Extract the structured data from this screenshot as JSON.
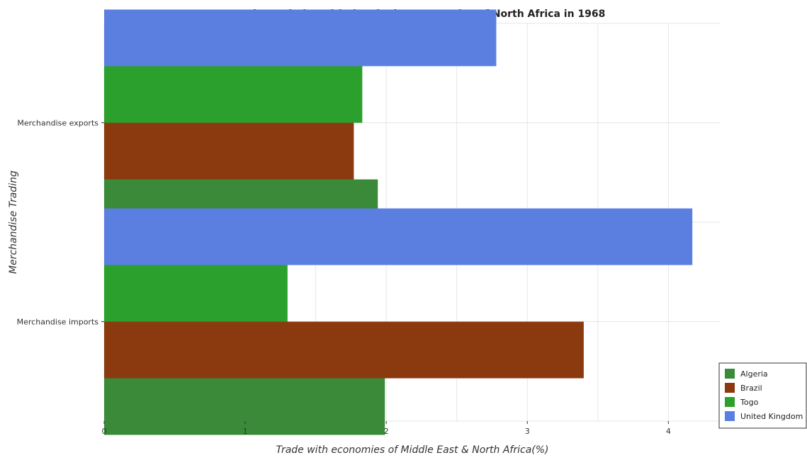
{
  "chart_data": {
    "type": "bar",
    "orientation": "horizontal",
    "title": "Trade statistics with developing economies of North Africa in 1968",
    "xlabel": "Trade with economies of Middle East & North Africa(%)",
    "ylabel": "Merchandise Trading",
    "xlim": [
      0,
      4.37
    ],
    "xticks": [
      0,
      1,
      2,
      3,
      4
    ],
    "xtick_labels": [
      "0",
      "1",
      "2",
      "3",
      "4"
    ],
    "categories": [
      "Merchandise exports",
      "Merchandise imports"
    ],
    "series": [
      {
        "name": "Algeria",
        "color": "#3a8a3a",
        "values": [
          1.94,
          1.99
        ]
      },
      {
        "name": "Brazil",
        "color": "#8b3a0f",
        "values": [
          1.77,
          3.4
        ]
      },
      {
        "name": "Togo",
        "color": "#2ca02c",
        "values": [
          1.83,
          1.3
        ]
      },
      {
        "name": "United Kingdom",
        "color": "#5b7fe0",
        "values": [
          2.78,
          4.17
        ]
      }
    ],
    "grid": true,
    "legend_position": "bottom-right"
  }
}
